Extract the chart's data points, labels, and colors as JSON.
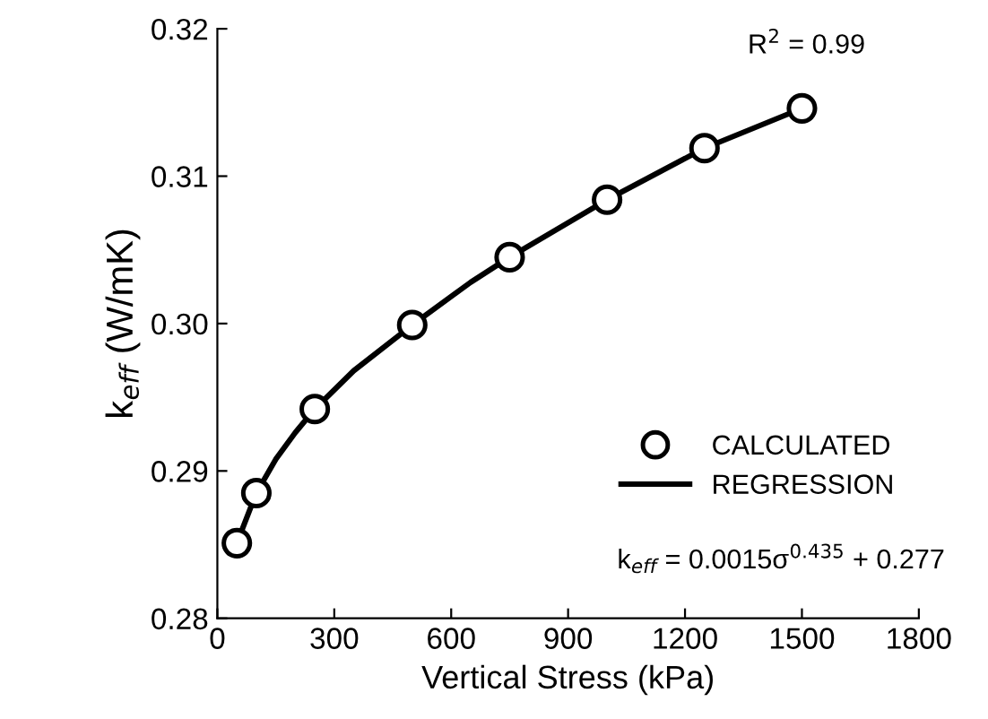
{
  "chart_data": {
    "type": "scatter",
    "xlabel": "Vertical Stress (kPa)",
    "ylabel": "k$_{eff}$ (W/mK)",
    "xlim": [
      0,
      1800
    ],
    "xticks": [
      0,
      300,
      600,
      900,
      1200,
      1500,
      1800
    ],
    "ylim": [
      0.28,
      0.32
    ],
    "yticks": [
      {
        "value": 0.28,
        "label": "0.28"
      },
      {
        "value": 0.29,
        "label": "0.29"
      },
      {
        "value": 0.3,
        "label": "0.30"
      },
      {
        "value": 0.31,
        "label": "0.31"
      },
      {
        "value": 0.32,
        "label": "0.32"
      }
    ],
    "grid": false,
    "legend": "bottom right",
    "series": [
      {
        "name": "REGRESSION",
        "type": "line",
        "color": "#000000",
        "marker": "none",
        "line_style": "solid",
        "x": [
          50,
          75,
          100,
          150,
          200,
          250,
          350,
          500,
          650,
          750,
          1000,
          1250,
          1500
        ],
        "values": [
          0.2851,
          0.2868,
          0.2885,
          0.2908,
          0.2926,
          0.2942,
          0.2968,
          0.2999,
          0.3028,
          0.3045,
          0.3084,
          0.3119,
          0.3146
        ]
      },
      {
        "name": "CALCULATED",
        "color": "#000000",
        "marker": "circle",
        "x": [
          50,
          100,
          250,
          500,
          750,
          1000,
          1250,
          1500
        ],
        "values": [
          0.2851,
          0.2885,
          0.2942,
          0.2999,
          0.3045,
          0.3084,
          0.3119,
          0.3146
        ]
      }
    ],
    "annotations": [
      "R$^{2}$ = 0.99",
      "k$_{eff}$ = 0.0015σ$^{0.435}$ + 0.277"
    ]
  }
}
